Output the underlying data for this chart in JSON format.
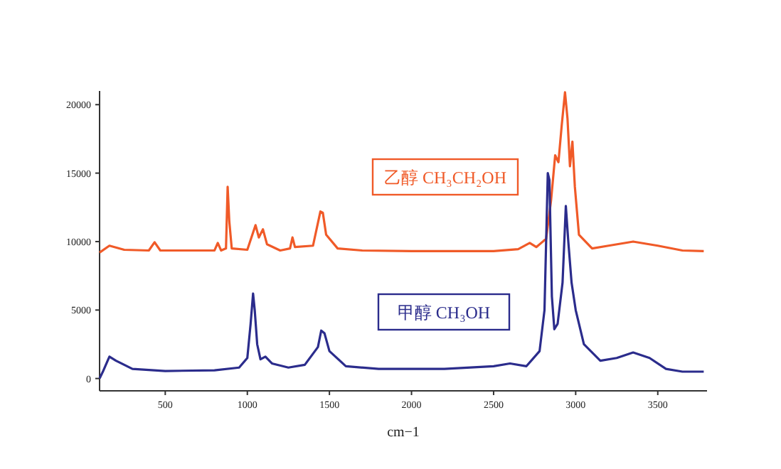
{
  "chart_data": {
    "type": "line",
    "xlabel": "cm−1",
    "xlim": [
      100,
      3800
    ],
    "xticks": [
      500,
      1000,
      1500,
      2000,
      2500,
      3000,
      3500
    ],
    "ylim": [
      -900,
      21000
    ],
    "yticks": [
      0,
      5000,
      10000,
      15000,
      20000
    ],
    "series": [
      {
        "name": "乙醇 CH₃CH₂OH",
        "color": "#f05a28",
        "x": [
          100,
          160,
          250,
          400,
          435,
          470,
          800,
          820,
          840,
          870,
          880,
          890,
          905,
          1000,
          1050,
          1070,
          1095,
          1120,
          1200,
          1260,
          1275,
          1290,
          1400,
          1445,
          1460,
          1480,
          1550,
          1700,
          2000,
          2500,
          2650,
          2720,
          2760,
          2820,
          2850,
          2875,
          2895,
          2915,
          2935,
          2950,
          2965,
          2980,
          2995,
          3020,
          3100,
          3200,
          3350,
          3500,
          3650,
          3780
        ],
        "values": [
          9200,
          9700,
          9400,
          9350,
          9950,
          9350,
          9350,
          9900,
          9350,
          9500,
          14000,
          11500,
          9500,
          9400,
          11200,
          10300,
          10900,
          9800,
          9350,
          9500,
          10300,
          9600,
          9700,
          12200,
          12100,
          10500,
          9500,
          9350,
          9300,
          9300,
          9450,
          9900,
          9600,
          10200,
          13000,
          16300,
          15800,
          18500,
          20900,
          19000,
          15500,
          17300,
          14000,
          10500,
          9500,
          9700,
          10000,
          9700,
          9350,
          9300
        ]
      },
      {
        "name": "甲醇 CH₃OH",
        "color": "#2b2c8c",
        "x": [
          100,
          120,
          160,
          200,
          300,
          500,
          800,
          950,
          1000,
          1020,
          1035,
          1045,
          1060,
          1080,
          1110,
          1150,
          1250,
          1350,
          1430,
          1450,
          1470,
          1500,
          1600,
          1800,
          2200,
          2500,
          2600,
          2700,
          2780,
          2810,
          2830,
          2840,
          2855,
          2870,
          2890,
          2920,
          2940,
          2955,
          2975,
          3000,
          3050,
          3150,
          3250,
          3350,
          3450,
          3550,
          3650,
          3780
        ],
        "values": [
          0,
          500,
          1600,
          1300,
          700,
          550,
          600,
          800,
          1500,
          4000,
          6200,
          5000,
          2500,
          1400,
          1600,
          1100,
          800,
          1000,
          2300,
          3500,
          3300,
          2000,
          900,
          700,
          700,
          900,
          1100,
          900,
          2000,
          5000,
          15000,
          14500,
          6000,
          3600,
          4000,
          7000,
          12600,
          10000,
          7000,
          5000,
          2500,
          1300,
          1500,
          1900,
          1500,
          700,
          500,
          500
        ]
      }
    ]
  }
}
